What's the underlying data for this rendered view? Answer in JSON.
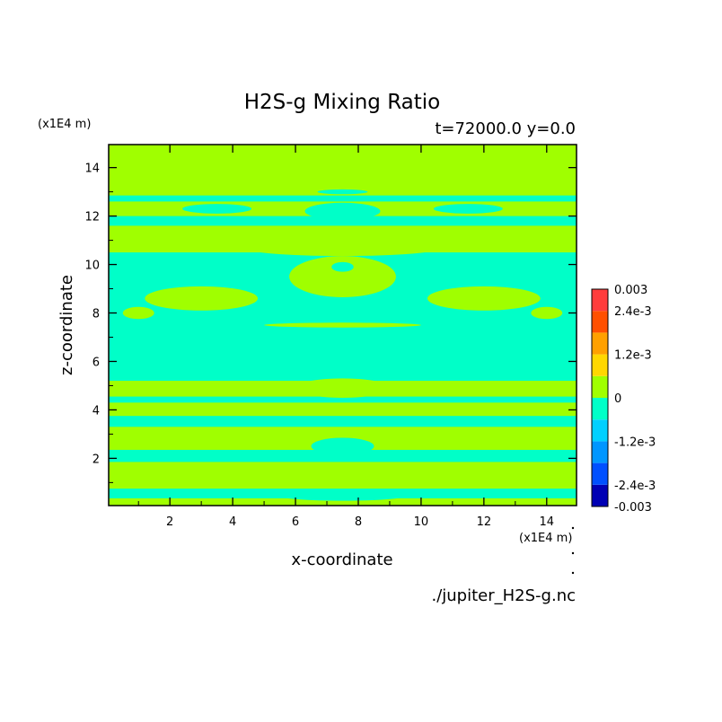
{
  "chart_data": {
    "type": "heatmap",
    "title": "H2S-g Mixing Ratio",
    "subtitle": "t=72000.0 y=0.0",
    "xlabel": "x-coordinate",
    "ylabel": "z-coordinate",
    "x_unit": "(x1E4 m)",
    "y_unit": "(x1E4 m)",
    "source_file": "./jupiter_H2S-g.nc",
    "xlim": [
      0.05,
      14.95
    ],
    "ylim": [
      0.05,
      14.95
    ],
    "x_ticks": [
      2,
      4,
      6,
      8,
      10,
      12,
      14
    ],
    "y_ticks": [
      2,
      4,
      6,
      8,
      10,
      12,
      14
    ],
    "x_tick_labels": [
      "2",
      "4",
      "6",
      "8",
      "10",
      "12",
      "14"
    ],
    "y_tick_labels": [
      "2",
      "4",
      "6",
      "8",
      "10",
      "12",
      "14"
    ],
    "grid": false,
    "colorbar": {
      "placement": "right",
      "levels": [
        -0.003,
        -0.0024,
        -0.0018,
        -0.0012,
        -0.0006,
        0,
        0.0006,
        0.0012,
        0.0018,
        0.0024,
        0.003
      ],
      "colors": [
        "#0000b4",
        "#0050ff",
        "#0096ff",
        "#00d0ff",
        "#00ffc8",
        "#a0ff00",
        "#ffd700",
        "#ffa000",
        "#ff5000",
        "#ff3c3c"
      ],
      "labels": [
        {
          "value": 0.003,
          "text": "0.003"
        },
        {
          "value": 0.0024,
          "text": "2.4e-3"
        },
        {
          "value": 0.0012,
          "text": "1.2e-3"
        },
        {
          "value": 0,
          "text": "0"
        },
        {
          "value": -0.0012,
          "text": "-1.2e-3"
        },
        {
          "value": -0.0024,
          "text": "-2.4e-3"
        },
        {
          "value": -0.003,
          "text": "-0.003"
        }
      ]
    },
    "field_values": {
      "background_value": 0.0003,
      "band_value": -0.0003
    },
    "teal_bands_z": [
      {
        "z": [
          0.35,
          0.75
        ]
      },
      {
        "z": [
          1.85,
          2.35
        ]
      },
      {
        "z": [
          3.3,
          3.75
        ]
      },
      {
        "z": [
          4.3,
          4.55
        ]
      },
      {
        "z": [
          5.2,
          10.5
        ]
      },
      {
        "z": [
          11.6,
          12.0
        ]
      },
      {
        "z": [
          12.6,
          12.85
        ]
      }
    ],
    "green_features": [
      {
        "shape": "ellipse",
        "cx": 7.5,
        "cz": 4.9,
        "rx": 1.5,
        "rz": 0.4
      },
      {
        "shape": "ellipse",
        "cx": 7.5,
        "cz": 9.5,
        "rx": 1.7,
        "rz": 0.85
      },
      {
        "shape": "ellipse",
        "cx": 7.5,
        "cz": 10.7,
        "rx": 3.2,
        "rz": 0.35
      },
      {
        "shape": "ellipse",
        "cx": 3.0,
        "cz": 8.6,
        "rx": 1.8,
        "rz": 0.5
      },
      {
        "shape": "ellipse",
        "cx": 12.0,
        "cz": 8.6,
        "rx": 1.8,
        "rz": 0.5
      },
      {
        "shape": "ellipse",
        "cx": 1.0,
        "cz": 8.0,
        "rx": 0.5,
        "rz": 0.25
      },
      {
        "shape": "ellipse",
        "cx": 14.0,
        "cz": 8.0,
        "rx": 0.5,
        "rz": 0.25
      },
      {
        "shape": "ellipse",
        "cx": 7.5,
        "cz": 7.5,
        "rx": 2.5,
        "rz": 0.1
      },
      {
        "shape": "ellipse",
        "cx": 7.5,
        "cz": 1.3,
        "rx": 0.9,
        "rz": 0.35
      },
      {
        "shape": "ellipse",
        "cx": 2.0,
        "cz": 1.2,
        "rx": 1.0,
        "rz": 0.3
      },
      {
        "shape": "ellipse",
        "cx": 13.0,
        "cz": 1.2,
        "rx": 1.0,
        "rz": 0.3
      }
    ],
    "teal_features": [
      {
        "shape": "ellipse",
        "cx": 7.5,
        "cz": 2.5,
        "rx": 1.0,
        "rz": 0.35
      },
      {
        "shape": "ellipse",
        "cx": 7.5,
        "cz": 6.2,
        "rx": 7.5,
        "rz": 0.2
      },
      {
        "shape": "ellipse",
        "cx": 7.5,
        "cz": 9.9,
        "rx": 0.35,
        "rz": 0.2
      },
      {
        "shape": "ellipse",
        "cx": 7.5,
        "cz": 12.2,
        "rx": 1.2,
        "rz": 0.35
      },
      {
        "shape": "ellipse",
        "cx": 3.5,
        "cz": 12.3,
        "rx": 1.1,
        "rz": 0.2
      },
      {
        "shape": "ellipse",
        "cx": 11.5,
        "cz": 12.3,
        "rx": 1.1,
        "rz": 0.2
      },
      {
        "shape": "ellipse",
        "cx": 7.5,
        "cz": 13.0,
        "rx": 0.8,
        "rz": 0.1
      },
      {
        "shape": "ellipse",
        "cx": 7.5,
        "cz": 0.45,
        "rx": 2.0,
        "rz": 0.2
      }
    ]
  }
}
